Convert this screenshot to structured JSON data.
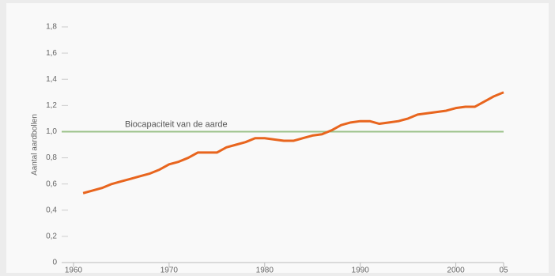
{
  "chart_data": {
    "type": "line",
    "y_label": "Aantal aardbollen",
    "x": [
      1961,
      1962,
      1963,
      1964,
      1965,
      1966,
      1967,
      1968,
      1969,
      1970,
      1971,
      1972,
      1973,
      1974,
      1975,
      1976,
      1977,
      1978,
      1979,
      1980,
      1981,
      1982,
      1983,
      1984,
      1985,
      1986,
      1987,
      1988,
      1989,
      1990,
      1991,
      1992,
      1993,
      1994,
      1995,
      1996,
      1997,
      1998,
      1999,
      2000,
      2001,
      2002,
      2003,
      2004,
      2005
    ],
    "series": [
      {
        "color": "#e8651e",
        "values": [
          0.53,
          0.55,
          0.57,
          0.6,
          0.62,
          0.64,
          0.66,
          0.68,
          0.71,
          0.75,
          0.77,
          0.8,
          0.84,
          0.84,
          0.84,
          0.88,
          0.9,
          0.92,
          0.95,
          0.95,
          0.94,
          0.93,
          0.93,
          0.95,
          0.97,
          0.98,
          1.01,
          1.05,
          1.07,
          1.08,
          1.08,
          1.06,
          1.07,
          1.08,
          1.1,
          1.13,
          1.14,
          1.15,
          1.16,
          1.18,
          1.19,
          1.19,
          1.23,
          1.27,
          1.3
        ]
      }
    ],
    "reference": {
      "value": 1.0,
      "label": "Biocapaciteit van de aarde",
      "color": "#9cc28a"
    },
    "xlim": [
      1960,
      2005
    ],
    "xticks": [
      1960,
      1970,
      1980,
      1990,
      2000,
      {
        "value": 2005,
        "label": "05"
      }
    ],
    "ylim": [
      0,
      1.8
    ],
    "yticks": [
      0,
      {
        "value": 0.2,
        "label": "0,2"
      },
      {
        "value": 0.4,
        "label": "0,4"
      },
      {
        "value": 0.6,
        "label": "0,6"
      },
      {
        "value": 0.8,
        "label": "0,8"
      },
      {
        "value": 1.0,
        "label": "1,0"
      },
      {
        "value": 1.2,
        "label": "1,2"
      },
      {
        "value": 1.4,
        "label": "1,4"
      },
      {
        "value": 1.6,
        "label": "1,6"
      },
      {
        "value": 1.8,
        "label": "1,8"
      }
    ]
  }
}
